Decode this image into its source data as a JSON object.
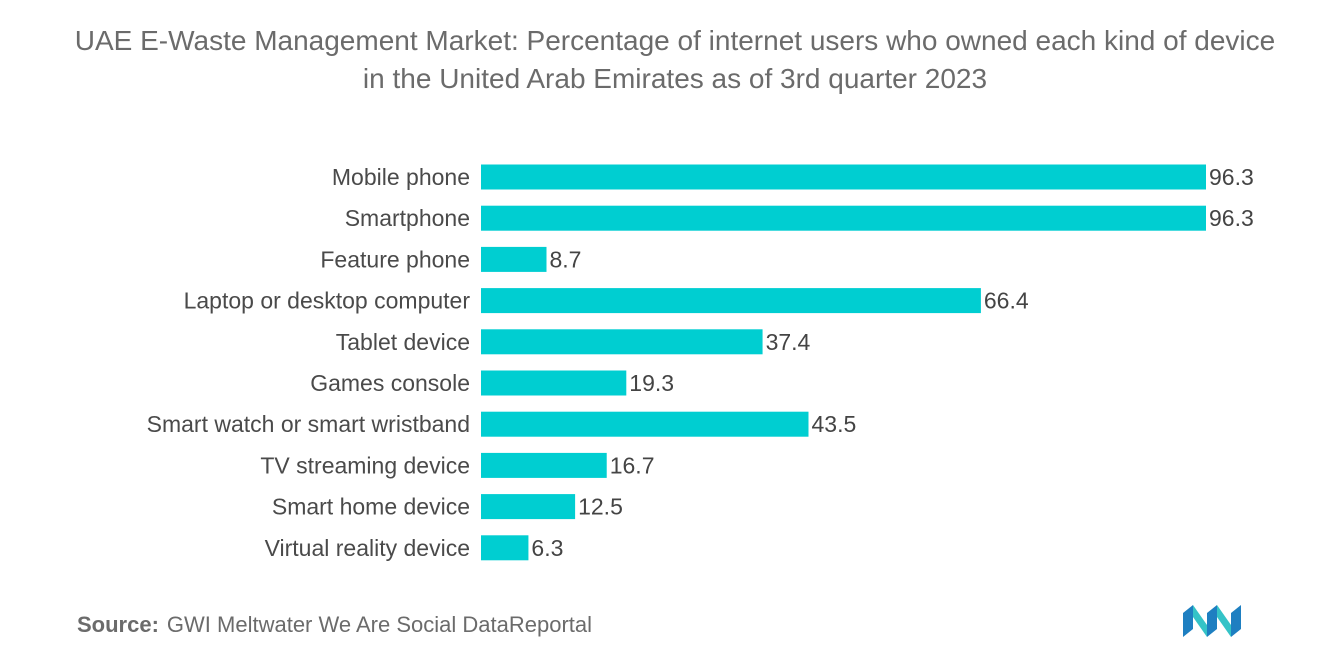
{
  "chart_data": {
    "type": "bar",
    "orientation": "horizontal",
    "title": "UAE E-Waste Management Market: Percentage of internet users who owned each kind of device in the United Arab Emirates as of 3rd quarter 2023",
    "categories": [
      "Mobile phone",
      "Smartphone",
      "Feature phone",
      "Laptop or desktop computer",
      "Tablet device",
      "Games console",
      "Smart watch or smart wristband",
      "TV streaming device",
      "Smart home device",
      "Virtual reality device"
    ],
    "values": [
      96.3,
      96.3,
      8.7,
      66.4,
      37.4,
      19.3,
      43.5,
      16.7,
      12.5,
      6.3
    ],
    "xlabel": "",
    "ylabel": "",
    "xlim": [
      0,
      100
    ],
    "grid": false,
    "bar_color": "#00CED1"
  },
  "source": {
    "label": "Source:",
    "text": "GWI Meltwater We Are Social DataReportal"
  },
  "logo": {
    "icon": "mordor-intelligence-logo-icon",
    "colors": [
      "#1e7fc1",
      "#34c3c7"
    ]
  }
}
